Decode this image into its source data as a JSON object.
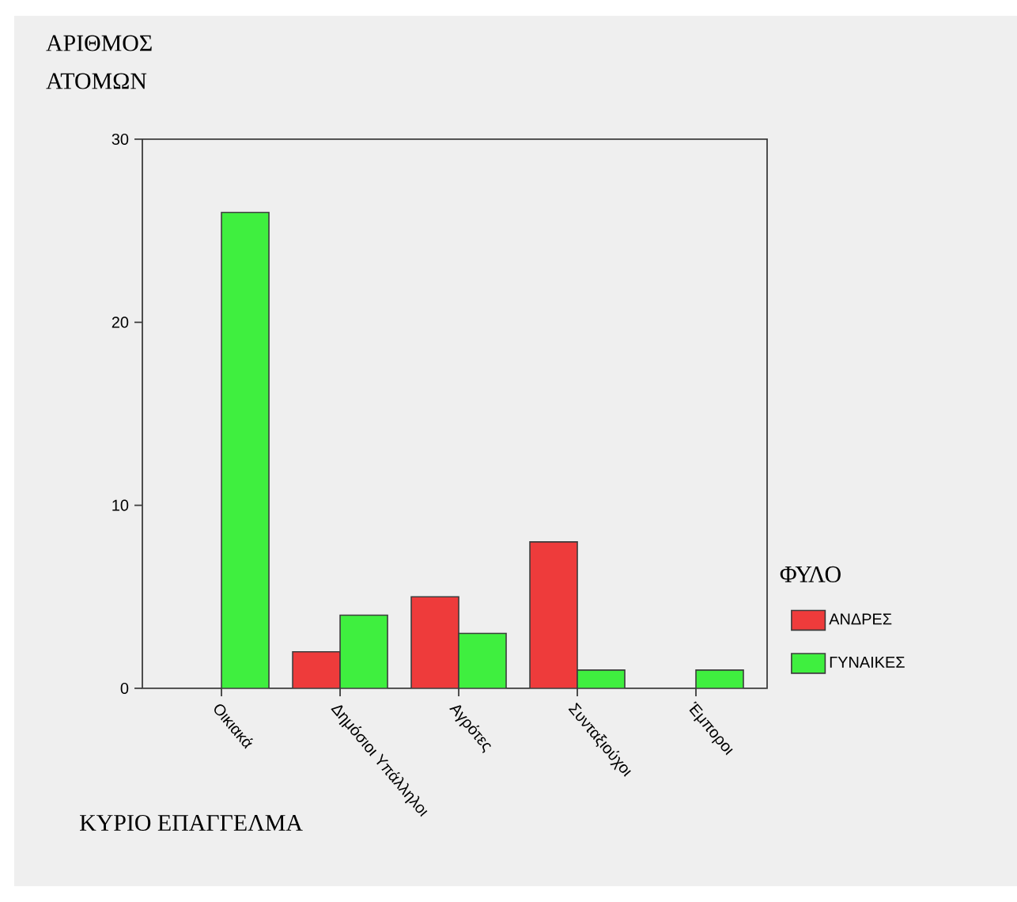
{
  "chart_data": {
    "type": "bar",
    "xlabel": "ΚΥΡΙΟ ΕΠΑΓΓΕΛΜΑ",
    "ylabel": "ΑΡΙΘΜΟΣ ΑΤΟΜΩΝ",
    "legend_title": "ΦΥΛΟ",
    "categories": [
      "Οικιακά",
      "Δημόσιοι Υπάλληλοι",
      "Αγρότες",
      "Συνταξιούχοι",
      "Έμποροι"
    ],
    "series": [
      {
        "name": "ΑΝΔΡΕΣ",
        "color": "#ee3b3b",
        "values": [
          null,
          2,
          5,
          8,
          null
        ]
      },
      {
        "name": "ΓΥΝΑΙΚΕΣ",
        "color": "#3fef3f",
        "values": [
          26,
          4,
          3,
          1,
          1
        ]
      }
    ],
    "ylim": [
      0,
      30
    ],
    "yticks": [
      0,
      10,
      20,
      30
    ],
    "grid": false,
    "legend": "right"
  }
}
